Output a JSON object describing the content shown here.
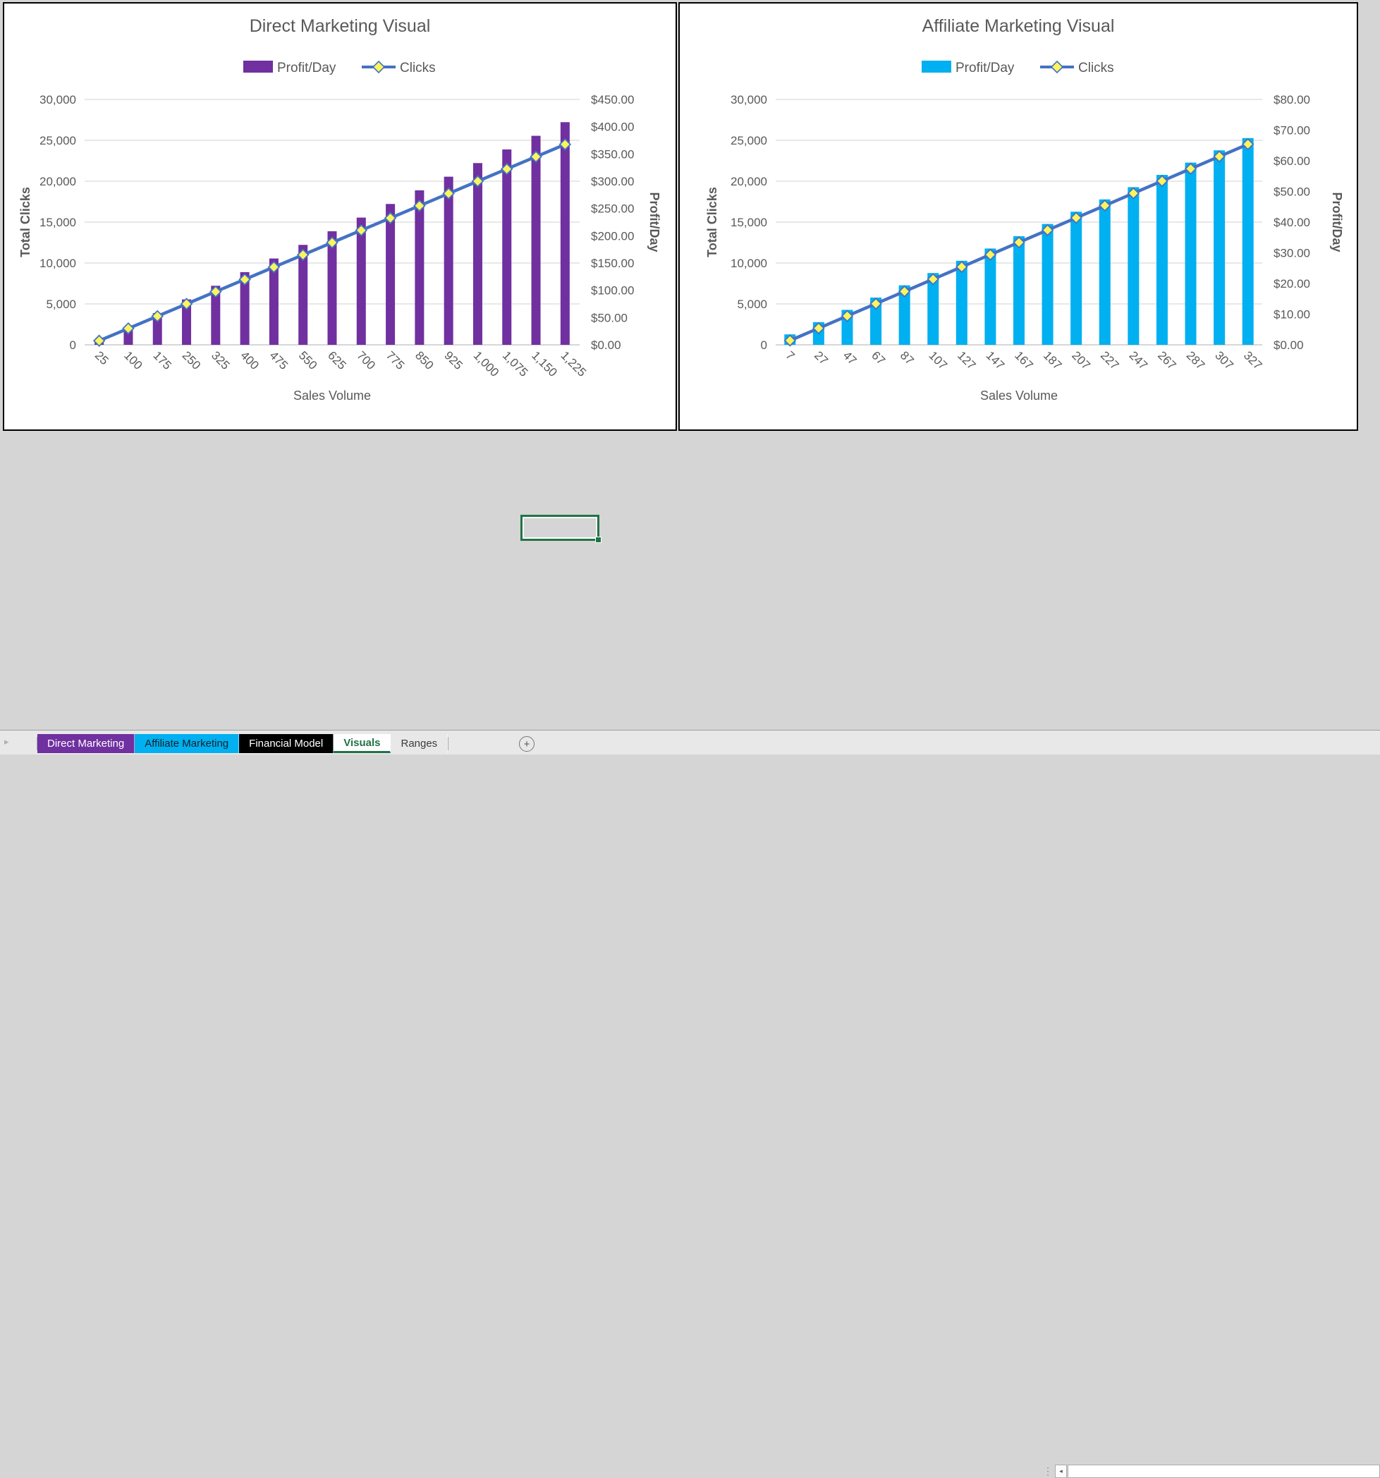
{
  "icons": {
    "tab_nav_right": "▸",
    "scroll_left": "◂",
    "overflow_dots": "⋮",
    "add_sheet": "+"
  },
  "colors": {
    "direct_bar": "#7030A0",
    "affiliate_bar": "#00B0F0",
    "clicks_line": "#4472C4",
    "marker_fill": "#FAF45E",
    "axis_text": "#595959",
    "gridline": "#DADADA",
    "axis_line": "#BFBFBF",
    "active_tab_green": "#217346",
    "sheet_background": "#D5D5D5"
  },
  "chart_data": [
    {
      "type": "combo",
      "title": "Direct Marketing Visual",
      "x": {
        "title": "Sales Volume",
        "categories": [
          "25",
          "100",
          "175",
          "250",
          "325",
          "400",
          "475",
          "550",
          "625",
          "700",
          "775",
          "850",
          "925",
          "1,000",
          "1,075",
          "1,150",
          "1,225"
        ]
      },
      "y_left": {
        "title": "Total Clicks",
        "min": 0,
        "max": 30000,
        "labels_top_to_bottom": [
          "30,000",
          "25,000",
          "20,000",
          "15,000",
          "10,000",
          "5,000",
          "0"
        ]
      },
      "y_right": {
        "title": "Profit/Day",
        "min": 0,
        "max": 450,
        "labels_top_to_bottom": [
          "$450.00",
          "$400.00",
          "$350.00",
          "$300.00",
          "$250.00",
          "$200.00",
          "$150.00",
          "$100.00",
          "$50.00",
          "$0.00"
        ]
      },
      "legend": [
        {
          "label": "Profit/Day",
          "kind": "bar",
          "color": "#7030A0"
        },
        {
          "label": "Clicks",
          "kind": "line",
          "color": "#4472C4",
          "marker_fill": "#FAF45E"
        }
      ],
      "series": [
        {
          "name": "Profit/Day",
          "kind": "bar",
          "axis": "right",
          "color": "#7030A0",
          "values": [
            8.3,
            33.3,
            58.3,
            83.3,
            108.3,
            133.3,
            158.3,
            183.3,
            208.3,
            233.3,
            258.3,
            283.3,
            308.3,
            333.3,
            358.3,
            383.3,
            408.3
          ]
        },
        {
          "name": "Clicks",
          "kind": "line",
          "axis": "left",
          "color": "#4472C4",
          "marker_fill": "#FAF45E",
          "values": [
            500,
            2000,
            3500,
            5000,
            6500,
            8000,
            9500,
            11000,
            12500,
            14000,
            15500,
            17000,
            18500,
            20000,
            21500,
            23000,
            24500
          ]
        }
      ]
    },
    {
      "type": "combo",
      "title": "Affiliate Marketing Visual",
      "x": {
        "title": "Sales Volume",
        "categories": [
          "7",
          "27",
          "47",
          "67",
          "87",
          "107",
          "127",
          "147",
          "167",
          "187",
          "207",
          "227",
          "247",
          "267",
          "287",
          "307",
          "327"
        ]
      },
      "y_left": {
        "title": "Total Clicks",
        "min": 0,
        "max": 30000,
        "labels_top_to_bottom": [
          "30,000",
          "25,000",
          "20,000",
          "15,000",
          "10,000",
          "5,000",
          "0"
        ]
      },
      "y_right": {
        "title": "Profit/Day",
        "min": 0,
        "max": 80,
        "labels_top_to_bottom": [
          "$80.00",
          "$70.00",
          "$60.00",
          "$50.00",
          "$40.00",
          "$30.00",
          "$20.00",
          "$10.00",
          "$0.00"
        ]
      },
      "legend": [
        {
          "label": "Profit/Day",
          "kind": "bar",
          "color": "#00B0F0"
        },
        {
          "label": "Clicks",
          "kind": "line",
          "color": "#4472C4",
          "marker_fill": "#FAF45E"
        }
      ],
      "series": [
        {
          "name": "Profit/Day",
          "kind": "bar",
          "axis": "right",
          "color": "#00B0F0",
          "values": [
            3.4,
            7.4,
            11.4,
            15.4,
            19.4,
            23.4,
            27.4,
            31.4,
            35.4,
            39.4,
            43.4,
            47.4,
            51.4,
            55.4,
            59.4,
            63.4,
            67.4
          ]
        },
        {
          "name": "Clicks",
          "kind": "line",
          "axis": "left",
          "color": "#4472C4",
          "marker_fill": "#FAF45E",
          "values": [
            525,
            2025,
            3525,
            5025,
            6525,
            8025,
            9525,
            11025,
            12525,
            14025,
            15525,
            17025,
            18525,
            20025,
            21525,
            23025,
            24525
          ]
        }
      ]
    }
  ],
  "sheet_tabs": [
    {
      "label": "Direct Marketing",
      "bg": "#7030A0",
      "fg": "#FFFFFF",
      "active": false
    },
    {
      "label": "Affiliate Marketing",
      "bg": "#00B0F0",
      "fg": "#17202A",
      "active": false
    },
    {
      "label": "Financial Model",
      "bg": "#000000",
      "fg": "#FFFFFF",
      "active": false
    },
    {
      "label": "Visuals",
      "bg": "#FFFFFF",
      "fg": "#217346",
      "active": true
    },
    {
      "label": "Ranges",
      "bg": "",
      "fg": "#3b3b3b",
      "active": false
    }
  ]
}
